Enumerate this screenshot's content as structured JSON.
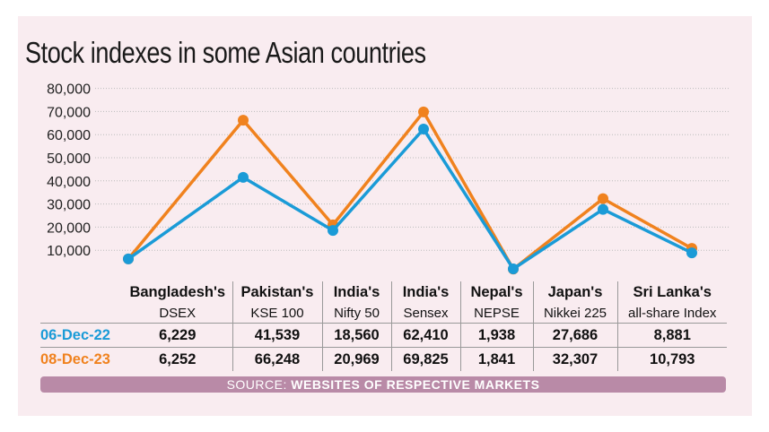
{
  "chart_data": {
    "type": "line",
    "title": "Stock indexes in some Asian countries",
    "categories": [
      {
        "country": "Bangladesh's",
        "index": "DSEX"
      },
      {
        "country": "Pakistan's",
        "index": "KSE 100"
      },
      {
        "country": "India's",
        "index": "Nifty 50"
      },
      {
        "country": "India's",
        "index": "Sensex"
      },
      {
        "country": "Nepal's",
        "index": "NEPSE"
      },
      {
        "country": "Japan's",
        "index": "Nikkei 225"
      },
      {
        "country": "Sri Lanka's",
        "index": "all-share Index"
      }
    ],
    "series": [
      {
        "name": "06-Dec-22",
        "color": "#1a9bd7",
        "values": [
          6229,
          41539,
          18560,
          62410,
          1938,
          27686,
          8881
        ],
        "labels": [
          "6,229",
          "41,539",
          "18,560",
          "62,410",
          "1,938",
          "27,686",
          "8,881"
        ]
      },
      {
        "name": "08-Dec-23",
        "color": "#f0821e",
        "values": [
          6252,
          66248,
          20969,
          69825,
          1841,
          32307,
          10793
        ],
        "labels": [
          "6,252",
          "66,248",
          "20,969",
          "69,825",
          "1,841",
          "32,307",
          "10,793"
        ]
      }
    ],
    "ylim": [
      0,
      80000
    ],
    "yticks": [
      "10,000",
      "20,000",
      "30,000",
      "40,000",
      "50,000",
      "60,000",
      "70,000",
      "80,000"
    ],
    "ytick_values": [
      10000,
      20000,
      30000,
      40000,
      50000,
      60000,
      70000,
      80000
    ],
    "grid": "horizontal dotted",
    "legend": "table below chart"
  },
  "source": {
    "prefix": "SOURCE:",
    "text": "WEBSITES OF RESPECTIVE MARKETS"
  },
  "colors": {
    "background": "#f9ecf0",
    "source_bar": "#b98aa7"
  }
}
